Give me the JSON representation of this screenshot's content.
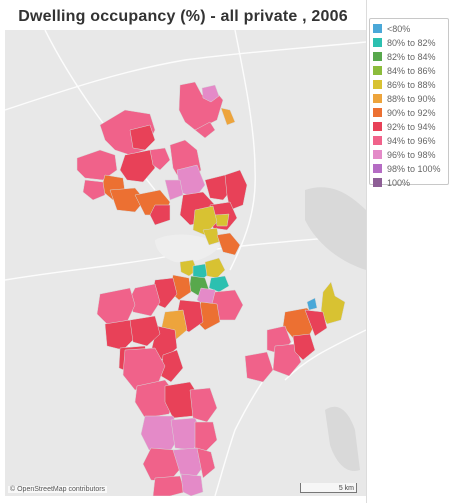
{
  "title": "Dwelling occupancy (%) - all private , 2006",
  "legend": [
    {
      "label": "<80%",
      "color": "#4aa8d8"
    },
    {
      "label": "80% to 82%",
      "color": "#2cc0b0"
    },
    {
      "label": "82% to 84%",
      "color": "#58a84c"
    },
    {
      "label": "84% to 86%",
      "color": "#8cbc3c"
    },
    {
      "label": "86% to 88%",
      "color": "#d8c232"
    },
    {
      "label": "88% to 90%",
      "color": "#eda43c"
    },
    {
      "label": "90% to 92%",
      "color": "#ec7032"
    },
    {
      "label": "92% to 94%",
      "color": "#e84158"
    },
    {
      "label": "94% to 96%",
      "color": "#f0628a"
    },
    {
      "label": "96% to 98%",
      "color": "#e48ac8"
    },
    {
      "label": "98% to 100%",
      "color": "#b56cc4"
    },
    {
      "label": "100%",
      "color": "#8e5f96"
    }
  ],
  "attribution": "© OpenStreetMap contributors",
  "scale_label": "5 km"
}
